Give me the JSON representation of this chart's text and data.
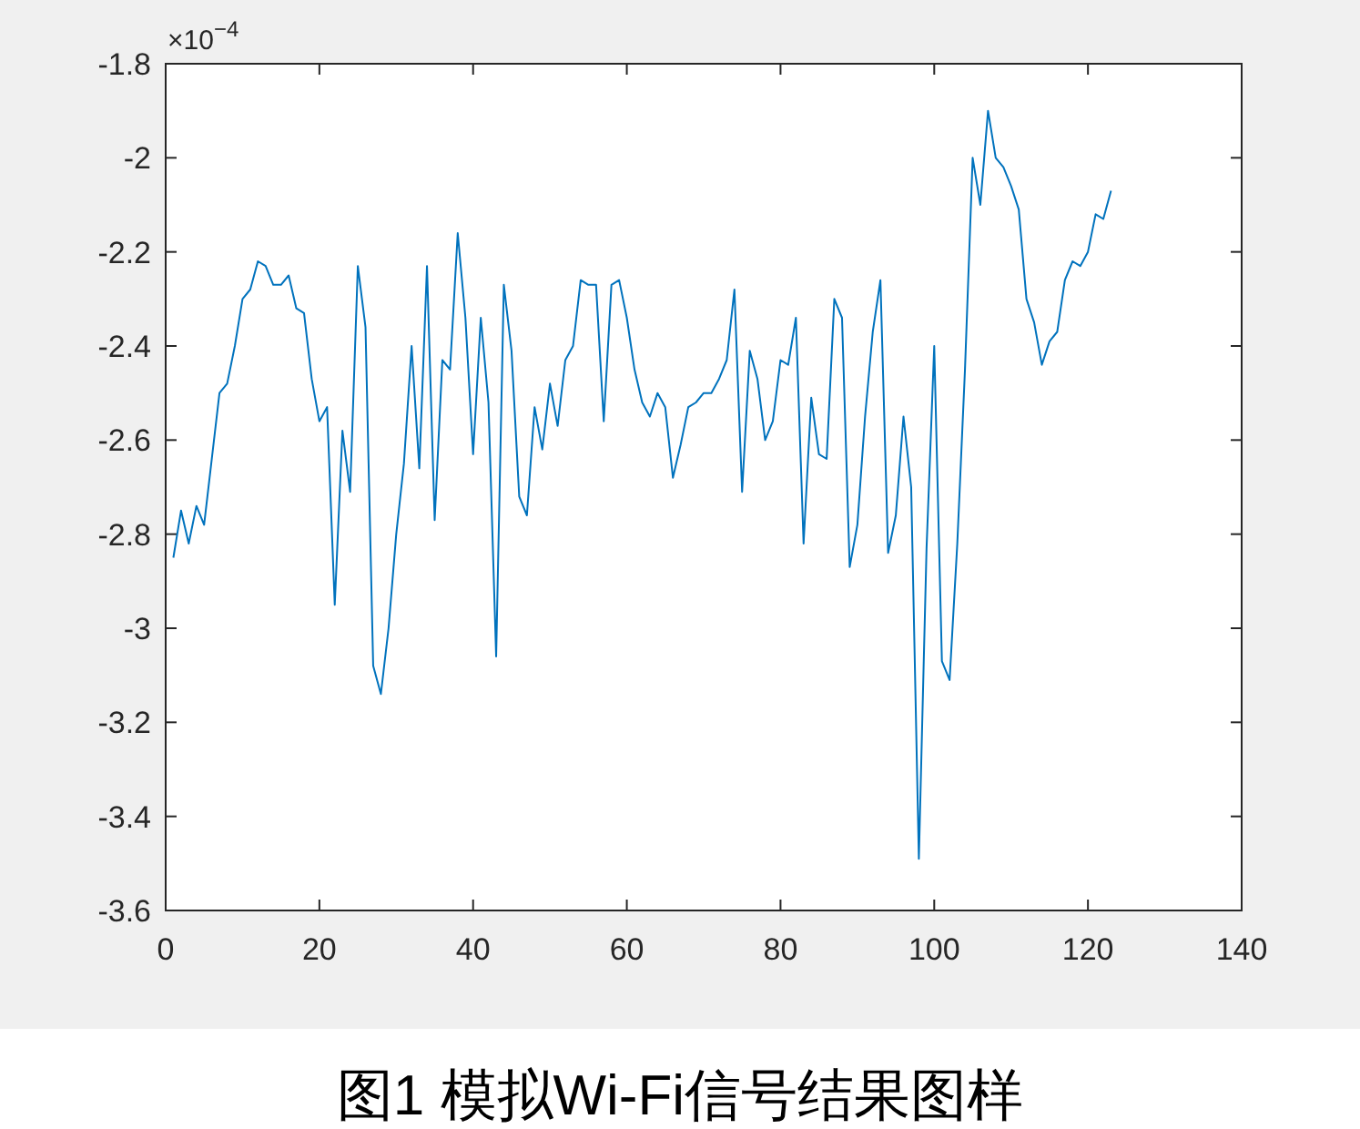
{
  "chart_data": {
    "type": "line",
    "xlim": [
      0,
      140
    ],
    "xticks": [
      0,
      20,
      40,
      60,
      80,
      100,
      120,
      140
    ],
    "ylim": [
      -3.6,
      -1.8
    ],
    "yticks": [
      -3.6,
      -3.4,
      -3.2,
      -3,
      -2.8,
      -2.6,
      -2.4,
      -2.2,
      -2,
      -1.8
    ],
    "x": [
      1,
      2,
      3,
      4,
      5,
      6,
      7,
      8,
      9,
      10,
      11,
      12,
      13,
      14,
      15,
      16,
      17,
      18,
      19,
      20,
      21,
      22,
      23,
      24,
      25,
      26,
      27,
      28,
      29,
      30,
      31,
      32,
      33,
      34,
      35,
      36,
      37,
      38,
      39,
      40,
      41,
      42,
      43,
      44,
      45,
      46,
      47,
      48,
      49,
      50,
      51,
      52,
      53,
      54,
      55,
      56,
      57,
      58,
      59,
      60,
      61,
      62,
      63,
      64,
      65,
      66,
      67,
      68,
      69,
      70,
      71,
      72,
      73,
      74,
      75,
      76,
      77,
      78,
      79,
      80,
      81,
      82,
      83,
      84,
      85,
      86,
      87,
      88,
      89,
      90,
      91,
      92,
      93,
      94,
      95,
      96,
      97,
      98,
      99,
      100,
      101,
      102,
      103,
      104,
      105,
      106,
      107,
      108,
      109,
      110,
      111,
      112,
      113,
      114,
      115,
      116,
      117,
      118,
      119,
      120,
      121,
      122,
      123
    ],
    "series": [
      {
        "color": "#0072bd",
        "values": [
          -2.85,
          -2.75,
          -2.82,
          -2.74,
          -2.78,
          -2.64,
          -2.5,
          -2.48,
          -2.4,
          -2.3,
          -2.28,
          -2.22,
          -2.23,
          -2.27,
          -2.27,
          -2.25,
          -2.32,
          -2.33,
          -2.47,
          -2.56,
          -2.53,
          -2.95,
          -2.58,
          -2.71,
          -2.23,
          -2.36,
          -3.08,
          -3.14,
          -3.0,
          -2.8,
          -2.65,
          -2.4,
          -2.66,
          -2.23,
          -2.77,
          -2.43,
          -2.45,
          -2.16,
          -2.34,
          -2.63,
          -2.34,
          -2.52,
          -3.06,
          -2.27,
          -2.41,
          -2.72,
          -2.76,
          -2.53,
          -2.62,
          -2.48,
          -2.57,
          -2.43,
          -2.4,
          -2.26,
          -2.27,
          -2.27,
          -2.56,
          -2.27,
          -2.26,
          -2.34,
          -2.45,
          -2.52,
          -2.55,
          -2.5,
          -2.53,
          -2.68,
          -2.61,
          -2.53,
          -2.52,
          -2.5,
          -2.5,
          -2.47,
          -2.43,
          -2.28,
          -2.71,
          -2.41,
          -2.47,
          -2.6,
          -2.56,
          -2.43,
          -2.44,
          -2.34,
          -2.82,
          -2.51,
          -2.63,
          -2.64,
          -2.3,
          -2.34,
          -2.87,
          -2.78,
          -2.55,
          -2.37,
          -2.26,
          -2.84,
          -2.76,
          -2.55,
          -2.7,
          -3.49,
          -2.83,
          -2.4,
          -3.07,
          -3.11,
          -2.82,
          -2.45,
          -2.0,
          -2.1,
          -1.9,
          -2.0,
          -2.02,
          -2.06,
          -2.11,
          -2.3,
          -2.35,
          -2.44,
          -2.39,
          -2.37,
          -2.26,
          -2.22,
          -2.23,
          -2.2,
          -2.12,
          -2.13,
          -2.07
        ]
      }
    ],
    "annotations": [
      "×10$^{−4}$",
      "图1  模拟Wi-Fi信号结果图样"
    ]
  }
}
